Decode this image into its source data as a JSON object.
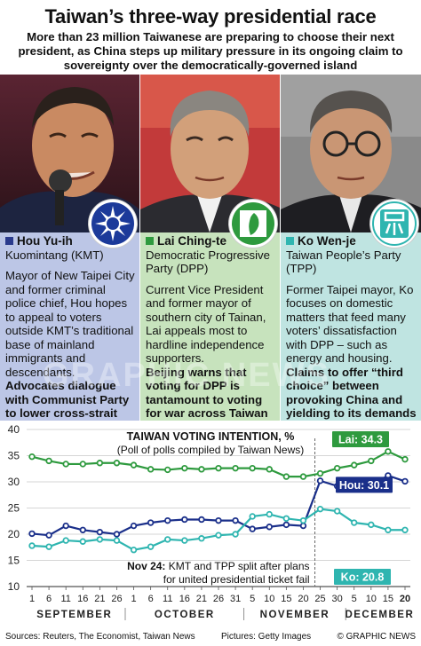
{
  "header": {
    "title": "Taiwan’s three-way presidential race",
    "subtitle": "More than 23 million Taiwanese are preparing to choose their next president, as China steps up military pressure in its ongoing claim to sovereignty over the democratically-governed island"
  },
  "candidates": [
    {
      "name": "Hou Yu-ih",
      "party": "Kuomintang (KMT)",
      "color": "#2a3a8c",
      "panel_bg": "#bcc6e6",
      "emblem": "kmt-sun-emblem-icon",
      "text": "Mayor of New Taipei City and former criminal police chief, Hou hopes to appeal to voters outside KMT’s traditional base of mainland immigrants and descendants.",
      "bold_text": "Advocates dialogue with Communist Party to lower cross-strait tensions"
    },
    {
      "name": "Lai Ching-te",
      "party": "Democratic Progressive Party (DPP)",
      "color": "#2e9a3e",
      "panel_bg": "#c7e3bd",
      "emblem": "dpp-taiwan-emblem-icon",
      "text": "Current Vice President and former mayor of southern city of Tainan, Lai appeals most to hardline independence supporters.",
      "bold_text": "Beijing warns that voting for DPP is tantamount to voting for war across Taiwan Strait"
    },
    {
      "name": "Ko Wen-je",
      "party": "Taiwan People’s Party (TPP)",
      "color": "#2fb5b0",
      "panel_bg": "#bfe4e1",
      "emblem": "tpp-zhong-emblem-icon",
      "text": "Former Taipei mayor, Ko focuses on domestic matters that feed many voters’ dissatisfaction with DPP – such as energy and housing.",
      "bold_text": "Claims to offer “third choice” between provoking China and yielding to its demands"
    }
  ],
  "watermark": "GRAPHIC NEWS",
  "chart_data": {
    "type": "line",
    "title": "TAIWAN VOTING INTENTION, %",
    "subtitle": "(Poll of polls compiled by Taiwan News)",
    "ylim": [
      10,
      40
    ],
    "yticks": [
      10,
      15,
      20,
      25,
      30,
      35,
      40
    ],
    "x": [
      1,
      6,
      11,
      16,
      21,
      26,
      1,
      6,
      11,
      16,
      21,
      26,
      31,
      5,
      10,
      15,
      20,
      25,
      30,
      5,
      10,
      15,
      20
    ],
    "xtick_labels": [
      "1",
      "6",
      "11",
      "16",
      "21",
      "26",
      "1",
      "6",
      "11",
      "16",
      "21",
      "26",
      "31",
      "5",
      "10",
      "15",
      "20",
      "25",
      "30",
      "5",
      "10",
      "15",
      "20"
    ],
    "months": [
      {
        "label": "SEPTEMBER",
        "start": 0,
        "end": 5
      },
      {
        "label": "OCTOBER",
        "start": 6,
        "end": 12
      },
      {
        "label": "NOVEMBER",
        "start": 13,
        "end": 18
      },
      {
        "label": "DECEMBER",
        "start": 19,
        "end": 22
      }
    ],
    "series": [
      {
        "name": "Lai",
        "color": "#2e9a3e",
        "end_label": "Lai: 34.3",
        "values": [
          34.8,
          34.0,
          33.4,
          33.4,
          33.6,
          33.6,
          33.2,
          32.4,
          32.3,
          32.6,
          32.4,
          32.6,
          32.6,
          32.6,
          32.4,
          31.0,
          31.0,
          31.6,
          32.6,
          33.2,
          34.0,
          35.8,
          34.3
        ]
      },
      {
        "name": "Hou",
        "color": "#1a2f8a",
        "end_label": "Hou: 30.1",
        "values": [
          20.1,
          19.8,
          21.6,
          20.8,
          20.4,
          20.0,
          21.6,
          22.2,
          22.6,
          22.8,
          22.8,
          22.6,
          22.6,
          21.0,
          21.4,
          21.8,
          21.6,
          30.2,
          29.2,
          29.0,
          29.4,
          31.2,
          30.1
        ]
      },
      {
        "name": "Ko",
        "color": "#2fb5b0",
        "end_label": "Ko: 20.8",
        "values": [
          17.8,
          17.6,
          18.8,
          18.6,
          19.0,
          18.8,
          17.0,
          17.6,
          19.0,
          18.8,
          19.2,
          19.8,
          20.0,
          23.4,
          23.8,
          23.0,
          22.6,
          24.8,
          24.4,
          22.2,
          21.8,
          20.8,
          20.8
        ]
      }
    ],
    "annotation": {
      "bold": "Nov 24:",
      "text": " KMT and TPP split after plans for united presidential ticket fail",
      "x_index": 17
    },
    "grid": true
  },
  "footer": {
    "sources": "Sources: Reuters, The Economist, Taiwan News",
    "pictures": "Pictures: Getty Images",
    "credit": "© GRAPHIC NEWS"
  }
}
